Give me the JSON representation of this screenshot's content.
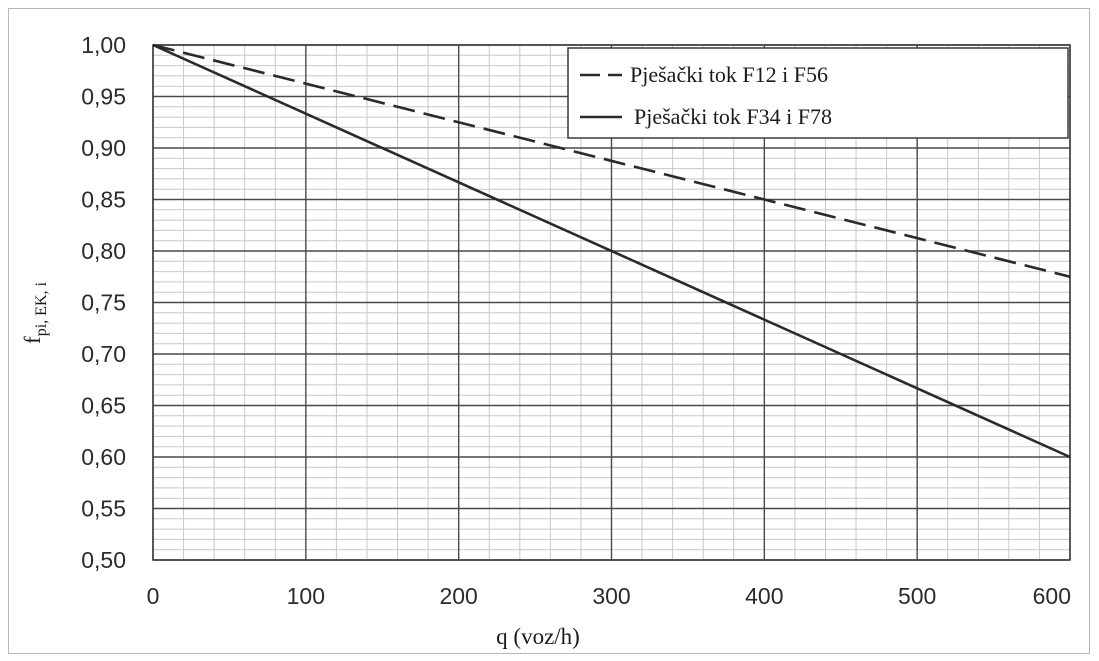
{
  "chart_data": {
    "type": "line",
    "xlabel": "q (voz/h)",
    "ylabel_main": "f",
    "ylabel_sub": "pi, EK, i",
    "xlim": [
      0,
      600
    ],
    "ylim": [
      0.5,
      1.0
    ],
    "x_ticks": [
      0,
      100,
      200,
      300,
      400,
      500,
      600
    ],
    "x_tick_labels": [
      "0",
      "100",
      "200",
      "300",
      "400",
      "500",
      "600"
    ],
    "y_ticks": [
      0.5,
      0.55,
      0.6,
      0.65,
      0.7,
      0.75,
      0.8,
      0.85,
      0.9,
      0.95,
      1.0
    ],
    "y_tick_labels": [
      "0,50",
      "0,55",
      "0,60",
      "0,65",
      "0,70",
      "0,75",
      "0,80",
      "0,85",
      "0,90",
      "0,95",
      "1,00"
    ],
    "x_minor_step": 20,
    "y_minor_step": 0.01,
    "grid": true,
    "legend_position": "top-right",
    "series": [
      {
        "name": "Pješački tok F12 i F56",
        "style": "dashed",
        "color": "#2a2a2a",
        "x": [
          0,
          600
        ],
        "y": [
          1.0,
          0.775
        ]
      },
      {
        "name": "Pješački tok F34 i F78",
        "style": "solid",
        "color": "#2a2a2a",
        "x": [
          0,
          600
        ],
        "y": [
          1.0,
          0.6
        ]
      }
    ]
  }
}
